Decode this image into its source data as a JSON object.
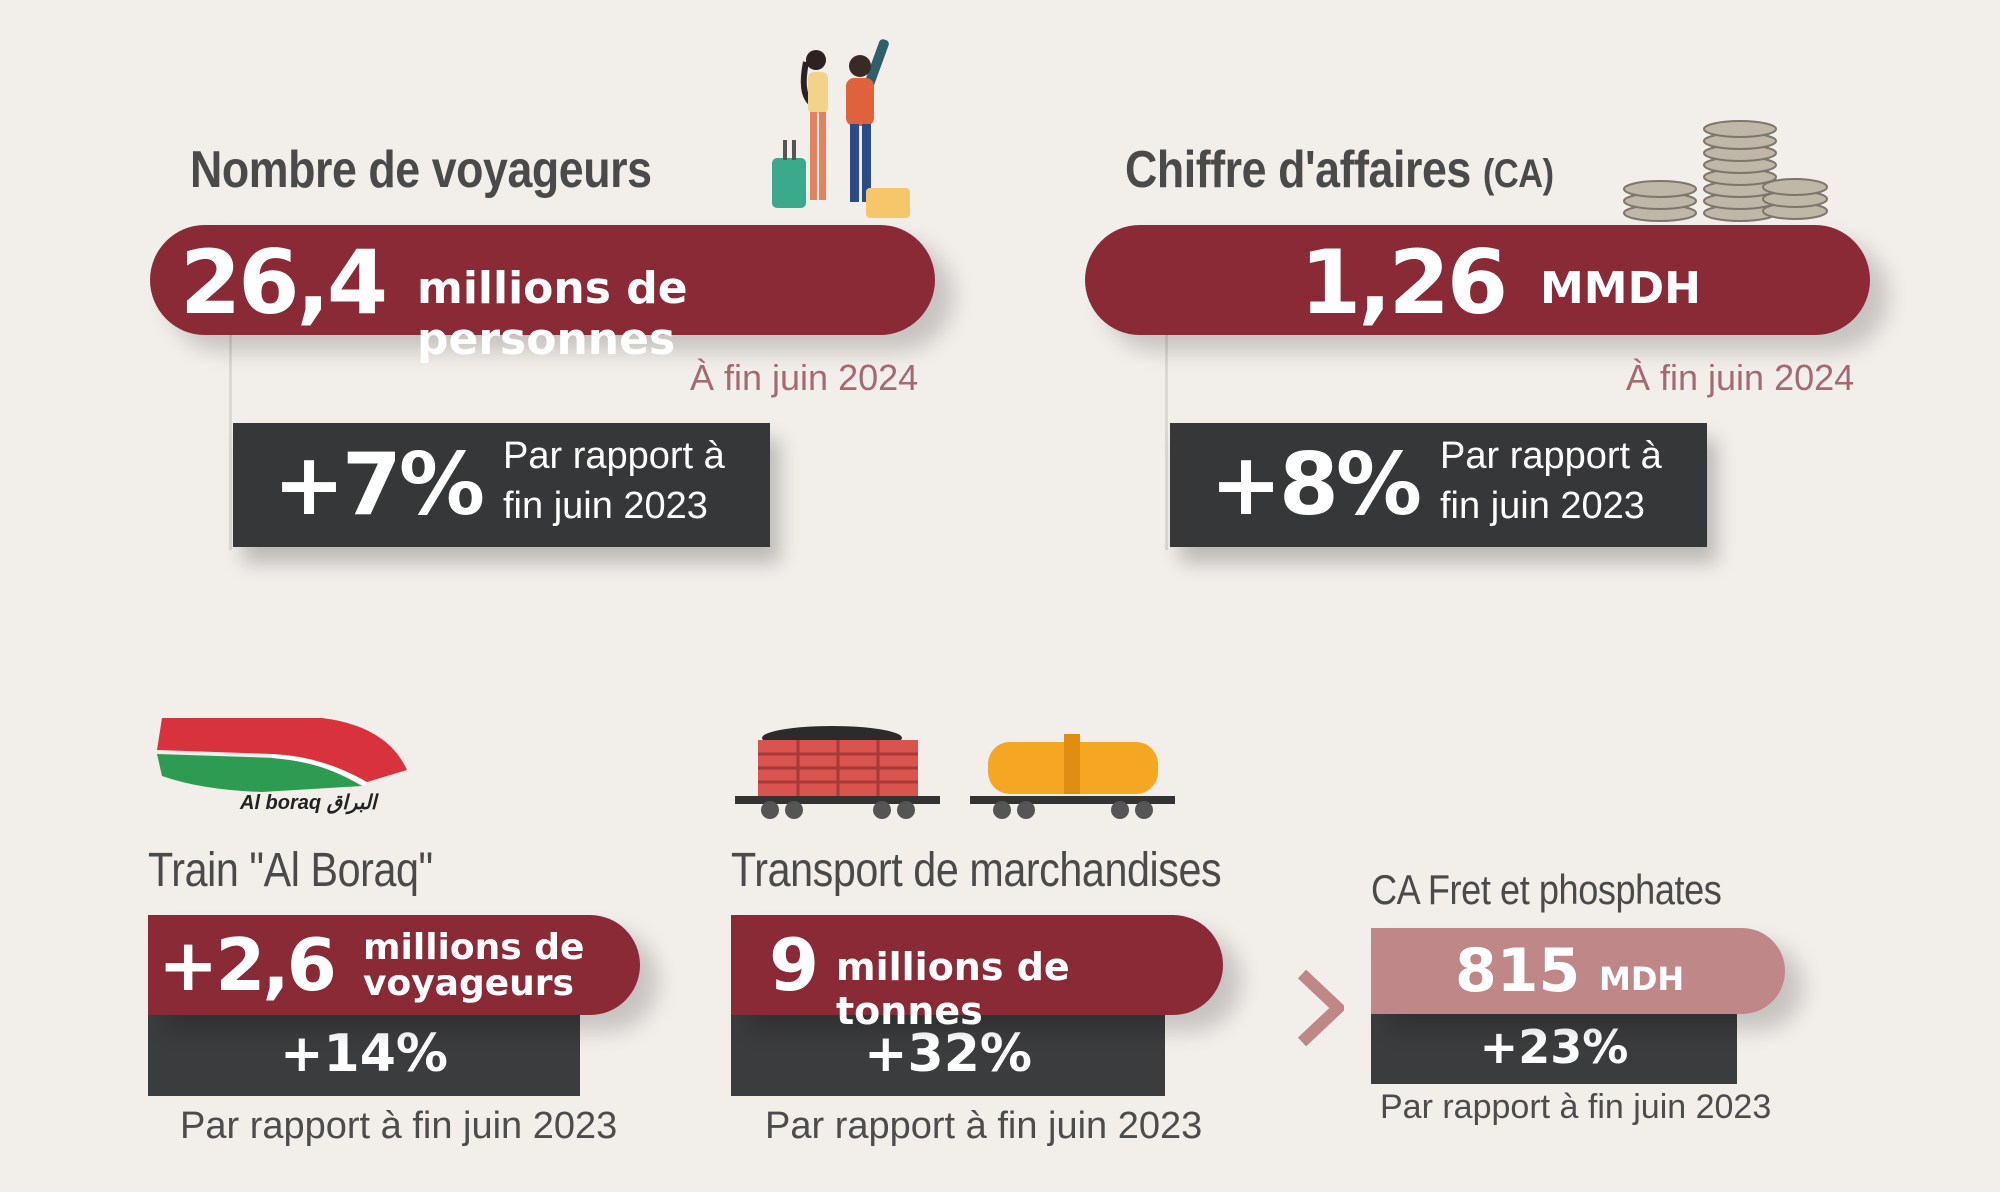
{
  "voyageurs": {
    "title": "Nombre de voyageurs",
    "value": "26,4",
    "unit": "millions de personnes",
    "date": "À fin juin 2024",
    "change": "+7%",
    "compare_line1": "Par rapport à",
    "compare_line2": "fin juin 2023"
  },
  "ca": {
    "title": "Chiffre d'affaires",
    "title_suffix": "(CA)",
    "value": "1,26",
    "unit": "MMDH",
    "date": "À fin juin 2024",
    "change": "+8%",
    "compare_line1": "Par rapport à",
    "compare_line2": "fin juin 2023"
  },
  "boraq": {
    "logo_text": "Al boraq البراق",
    "title": "Train \"Al Boraq\"",
    "value": "+2,6",
    "unit_line1": "millions de",
    "unit_line2": "voyageurs",
    "change": "+14%",
    "compare": "Par rapport à fin juin 2023"
  },
  "marchandises": {
    "title": "Transport de marchandises",
    "value": "9",
    "unit": "millions de tonnes",
    "change": "+32%",
    "compare": "Par rapport à fin juin 2023"
  },
  "fret": {
    "title": "CA Fret et phosphates",
    "value": "815",
    "unit": "MDH",
    "change": "+23%",
    "compare": "Par rapport à fin juin 2023"
  },
  "colors": {
    "bordeaux": "#8a2a36",
    "rose": "#c08788",
    "dark": "#363738",
    "background": "#f2eeea"
  }
}
